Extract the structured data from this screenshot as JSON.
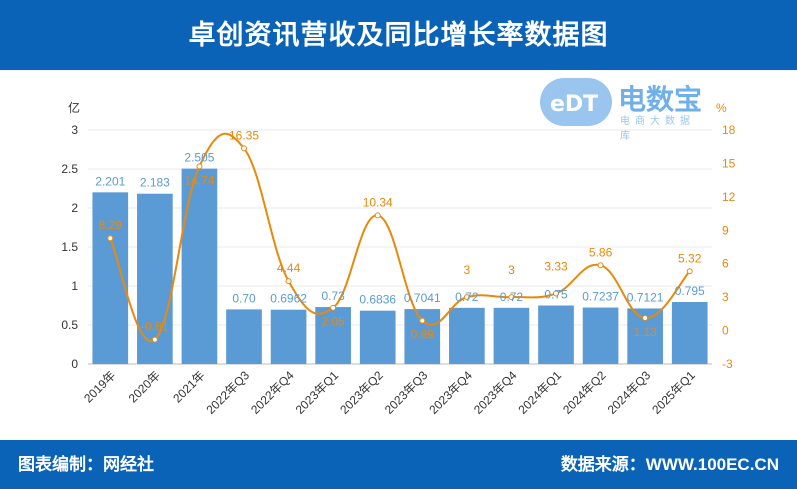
{
  "header": {
    "title": "卓创资讯营收及同比增长率数据图"
  },
  "footer": {
    "editor": "图表编制：网经社",
    "source": "数据来源：WWW.100EC.CN"
  },
  "logo": {
    "name": "电数宝",
    "sub": "电商大数据库",
    "mark": "eDT"
  },
  "colors": {
    "bar": "#5b9bd5",
    "line": "#e8890c",
    "bar_label": "#5b9bd5",
    "line_label": "#e8890c"
  },
  "chart_data": {
    "type": "bar+line",
    "title": "卓创资讯营收及同比增长率数据图",
    "categories": [
      "2019年",
      "2020年",
      "2021年",
      "2022年Q3",
      "2022年Q4",
      "2023年Q1",
      "2023年Q2",
      "2023年Q3",
      "2023年Q4",
      "2023年Q4",
      "2024年Q1",
      "2024年Q2",
      "2024年Q3",
      "2025年Q1"
    ],
    "series": [
      {
        "name": "营收",
        "axis": "left",
        "type": "bar",
        "values": [
          2.201,
          2.183,
          2.505,
          0.7,
          0.6962,
          0.73,
          0.6836,
          0.7041,
          0.72,
          0.72,
          0.75,
          0.7237,
          0.7121,
          0.795
        ],
        "labels": [
          "2.201",
          "2.183",
          "2.505",
          "0.70",
          "0.6962",
          "0.73",
          "0.6836",
          "0.7041",
          "0.72",
          "0.72",
          "0.75",
          "0.7237",
          "0.7121",
          "0.795"
        ]
      },
      {
        "name": "同比增长率",
        "axis": "right",
        "type": "line",
        "values": [
          8.29,
          -0.81,
          14.74,
          16.35,
          4.44,
          2.05,
          10.34,
          0.89,
          3,
          3,
          3.33,
          5.86,
          1.13,
          5.32
        ],
        "labels": [
          "8.29",
          "-0.81",
          "14.74",
          "16.35",
          "4.44",
          "2.05",
          "10.34",
          "0.89",
          "3",
          "3",
          "3.33",
          "5.86",
          "1.13",
          "5.32"
        ]
      }
    ],
    "ylabel": "亿",
    "y2label": "%",
    "ylim": [
      0,
      3
    ],
    "yticks": [
      "0",
      "0.5",
      "1",
      "1.5",
      "2",
      "2.5",
      "3"
    ],
    "y2lim": [
      -3,
      18
    ],
    "y2ticks": [
      "-3",
      "0",
      "3",
      "6",
      "9",
      "12",
      "15",
      "18"
    ],
    "grid": true
  }
}
